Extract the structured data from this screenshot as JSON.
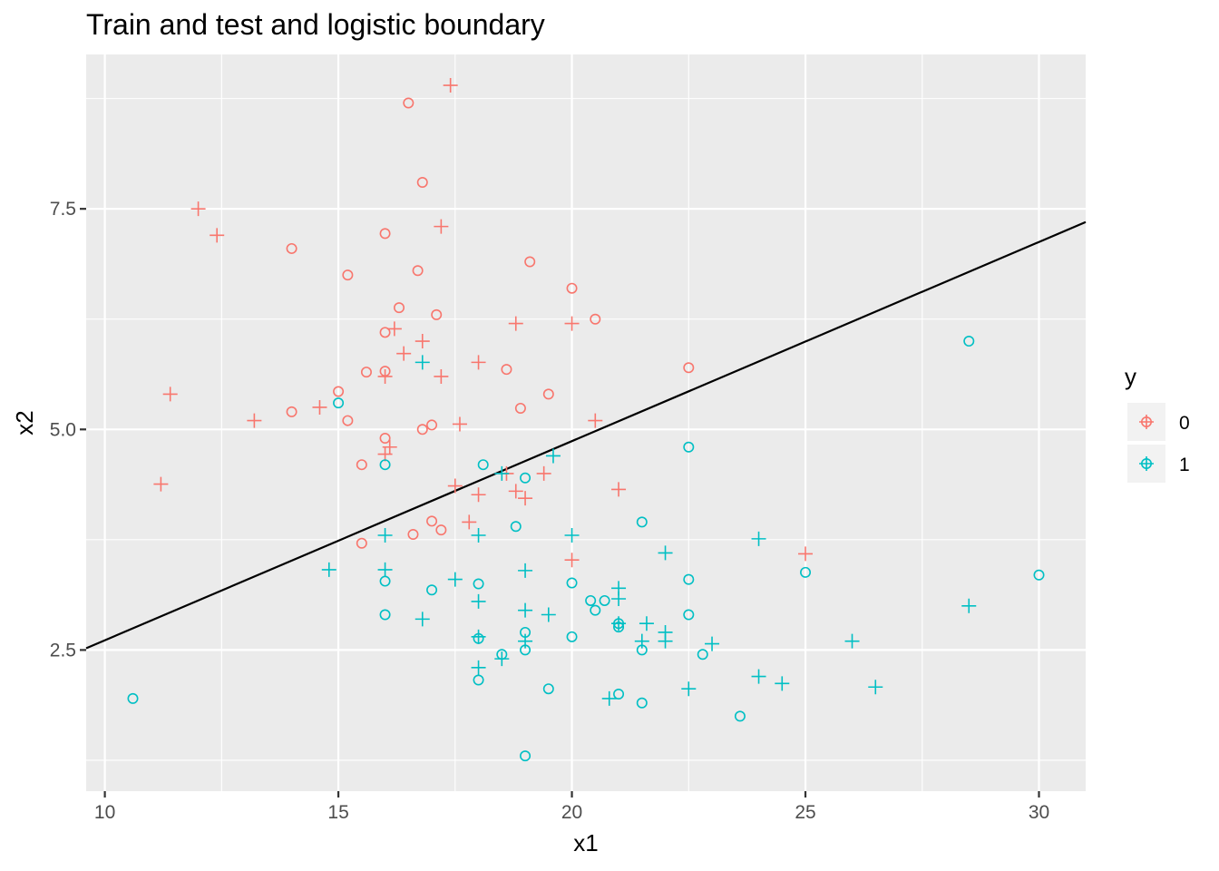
{
  "chart_data": {
    "type": "scatter",
    "title": "Train and test and logistic boundary",
    "xlabel": "x1",
    "ylabel": "x2",
    "xlim": [
      9.6,
      31.0
    ],
    "ylim": [
      0.9,
      9.25
    ],
    "x_ticks": [
      10,
      15,
      20,
      25,
      30
    ],
    "x_tick_labels": [
      "10",
      "15",
      "20",
      "25",
      "30"
    ],
    "y_ticks": [
      2.5,
      5.0,
      7.5
    ],
    "y_tick_labels": [
      "2.5",
      "5.0",
      "7.5"
    ],
    "grid": true,
    "legend": {
      "title": "y",
      "position": "right",
      "entries": [
        {
          "label": "0",
          "color": "#F8766D"
        },
        {
          "label": "1",
          "color": "#00BFC4"
        }
      ]
    },
    "marker_shapes": {
      "circle": "o",
      "plus": "+"
    },
    "boundary": {
      "x": [
        9.6,
        31.0
      ],
      "y": [
        2.52,
        7.35
      ],
      "color": "#000000"
    },
    "series": [
      {
        "name": "0",
        "color": "#F8766D",
        "circles": [
          [
            16.5,
            8.7
          ],
          [
            16.8,
            7.8
          ],
          [
            14.0,
            7.05
          ],
          [
            16.0,
            7.22
          ],
          [
            15.2,
            6.75
          ],
          [
            16.7,
            6.8
          ],
          [
            19.1,
            6.9
          ],
          [
            20.0,
            6.6
          ],
          [
            16.3,
            6.38
          ],
          [
            17.1,
            6.3
          ],
          [
            20.5,
            6.25
          ],
          [
            16.0,
            6.1
          ],
          [
            15.6,
            5.65
          ],
          [
            16.0,
            5.66
          ],
          [
            18.6,
            5.68
          ],
          [
            22.5,
            5.7
          ],
          [
            15.0,
            5.43
          ],
          [
            19.5,
            5.4
          ],
          [
            14.0,
            5.2
          ],
          [
            15.2,
            5.1
          ],
          [
            18.9,
            5.24
          ],
          [
            17.0,
            5.05
          ],
          [
            16.8,
            5.0
          ],
          [
            16.0,
            4.9
          ],
          [
            15.5,
            4.6
          ],
          [
            17.0,
            3.96
          ],
          [
            16.6,
            3.81
          ],
          [
            17.2,
            3.86
          ],
          [
            15.5,
            3.71
          ]
        ],
        "pluses": [
          [
            17.4,
            8.9
          ],
          [
            12.0,
            7.5
          ],
          [
            12.4,
            7.2
          ],
          [
            17.2,
            7.3
          ],
          [
            16.2,
            6.14
          ],
          [
            18.8,
            6.2
          ],
          [
            20.0,
            6.2
          ],
          [
            16.8,
            6.0
          ],
          [
            16.4,
            5.86
          ],
          [
            18.0,
            5.76
          ],
          [
            16.0,
            5.6
          ],
          [
            17.2,
            5.6
          ],
          [
            11.4,
            5.4
          ],
          [
            14.6,
            5.25
          ],
          [
            13.2,
            5.1
          ],
          [
            17.6,
            5.06
          ],
          [
            20.5,
            5.1
          ],
          [
            16.1,
            4.8
          ],
          [
            16.0,
            4.72
          ],
          [
            11.2,
            4.38
          ],
          [
            17.5,
            4.36
          ],
          [
            18.6,
            4.5
          ],
          [
            19.4,
            4.5
          ],
          [
            18.0,
            4.26
          ],
          [
            18.8,
            4.3
          ],
          [
            19.0,
            4.22
          ],
          [
            21.0,
            4.32
          ],
          [
            17.8,
            3.95
          ],
          [
            20.0,
            3.52
          ],
          [
            25.0,
            3.59
          ]
        ]
      },
      {
        "name": "1",
        "color": "#00BFC4",
        "circles": [
          [
            15.0,
            5.3
          ],
          [
            28.5,
            6.0
          ],
          [
            22.5,
            4.8
          ],
          [
            16.0,
            4.6
          ],
          [
            18.1,
            4.6
          ],
          [
            19.0,
            4.45
          ],
          [
            21.5,
            3.95
          ],
          [
            18.8,
            3.9
          ],
          [
            25.0,
            3.38
          ],
          [
            30.0,
            3.35
          ],
          [
            16.0,
            3.28
          ],
          [
            18.0,
            3.25
          ],
          [
            20.0,
            3.26
          ],
          [
            22.5,
            3.3
          ],
          [
            17.0,
            3.18
          ],
          [
            20.4,
            3.06
          ],
          [
            20.7,
            3.06
          ],
          [
            20.5,
            2.95
          ],
          [
            16.0,
            2.9
          ],
          [
            22.5,
            2.9
          ],
          [
            21.0,
            2.8
          ],
          [
            21.0,
            2.76
          ],
          [
            19.0,
            2.7
          ],
          [
            20.0,
            2.65
          ],
          [
            18.0,
            2.63
          ],
          [
            21.5,
            2.5
          ],
          [
            19.0,
            2.5
          ],
          [
            18.5,
            2.45
          ],
          [
            22.8,
            2.45
          ],
          [
            18.0,
            2.16
          ],
          [
            19.5,
            2.06
          ],
          [
            21.0,
            2.0
          ],
          [
            10.6,
            1.95
          ],
          [
            21.5,
            1.9
          ],
          [
            23.6,
            1.75
          ],
          [
            19.0,
            1.3
          ]
        ],
        "pluses": [
          [
            16.8,
            5.76
          ],
          [
            19.6,
            4.7
          ],
          [
            18.5,
            4.5
          ],
          [
            20.0,
            3.8
          ],
          [
            16.0,
            3.8
          ],
          [
            18.0,
            3.8
          ],
          [
            24.0,
            3.76
          ],
          [
            22.0,
            3.6
          ],
          [
            14.8,
            3.41
          ],
          [
            16.0,
            3.41
          ],
          [
            19.0,
            3.4
          ],
          [
            17.5,
            3.3
          ],
          [
            21.0,
            3.2
          ],
          [
            21.0,
            3.08
          ],
          [
            18.0,
            3.05
          ],
          [
            19.0,
            2.95
          ],
          [
            19.5,
            2.9
          ],
          [
            16.8,
            2.85
          ],
          [
            21.6,
            2.8
          ],
          [
            21.0,
            2.8
          ],
          [
            22.0,
            2.7
          ],
          [
            18.0,
            2.65
          ],
          [
            19.0,
            2.6
          ],
          [
            21.5,
            2.6
          ],
          [
            22.0,
            2.6
          ],
          [
            23.0,
            2.57
          ],
          [
            26.0,
            2.6
          ],
          [
            28.5,
            3.0
          ],
          [
            18.5,
            2.4
          ],
          [
            18.0,
            2.3
          ],
          [
            24.0,
            2.2
          ],
          [
            24.5,
            2.12
          ],
          [
            22.5,
            2.06
          ],
          [
            26.5,
            2.08
          ],
          [
            20.8,
            1.95
          ]
        ]
      }
    ]
  }
}
